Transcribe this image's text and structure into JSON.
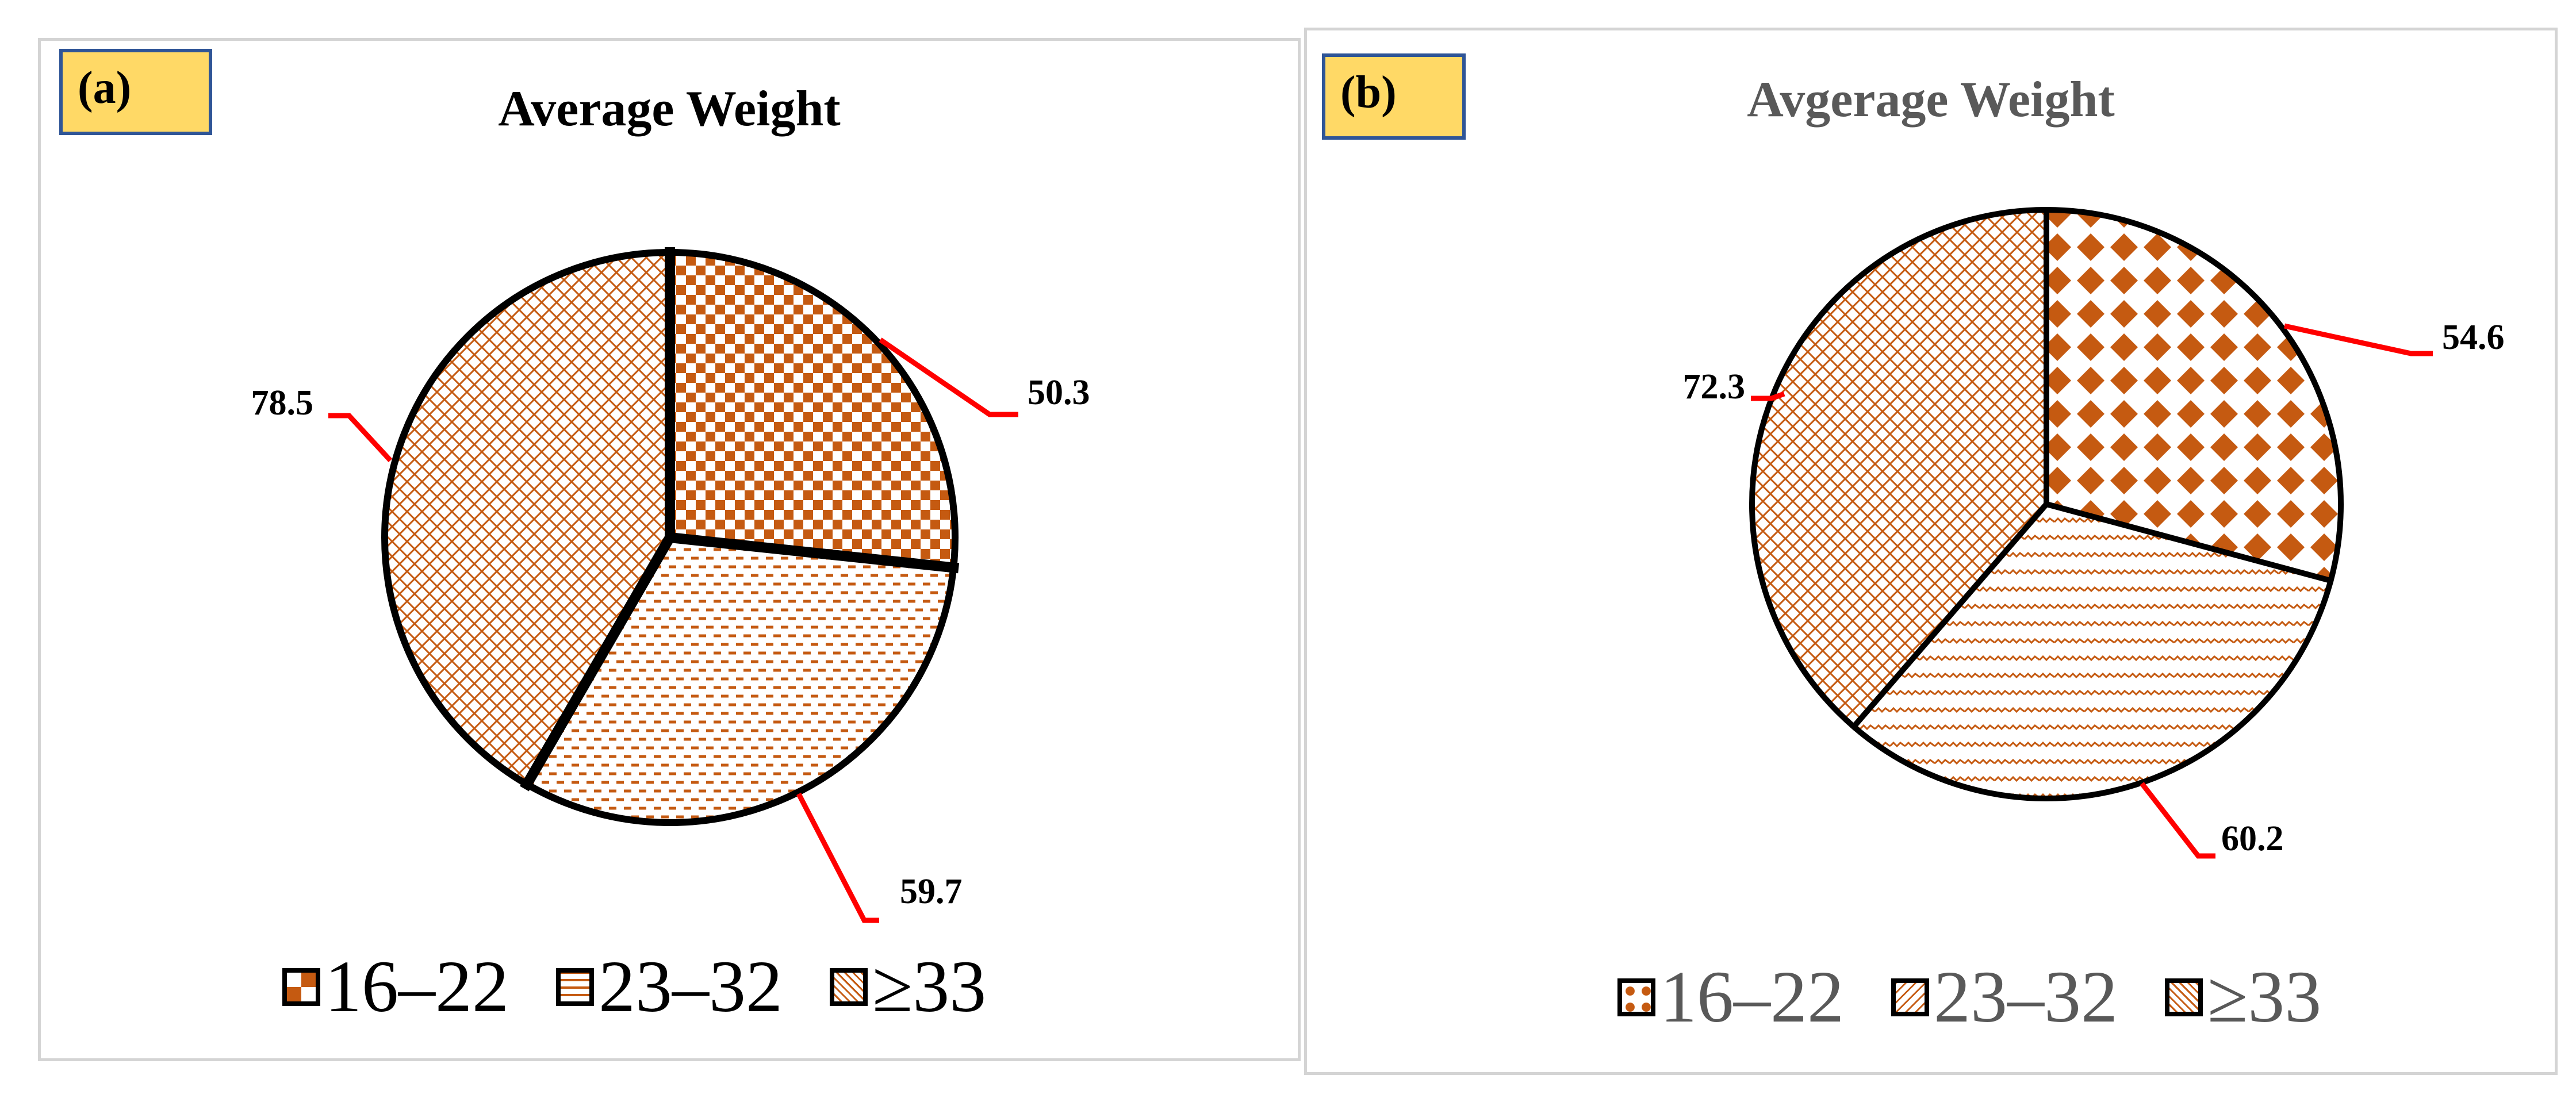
{
  "colors": {
    "pattern": "#c55a11",
    "leader": "#ff0000",
    "outline": "#000000",
    "badge_fill": "#ffd966",
    "badge_border": "#2f5597"
  },
  "chart_data": [
    {
      "type": "pie",
      "panel_label": "(a)",
      "title": "Average Weight",
      "categories": [
        "16–22",
        "23–32",
        "≥33"
      ],
      "values": [
        50.3,
        59.7,
        78.5
      ],
      "data_labels": [
        "50.3",
        "59.7",
        "78.5"
      ],
      "legend": [
        "16–22",
        "23–32",
        "≥33"
      ],
      "legend_position": "bottom",
      "start_angle": "12 o'clock",
      "direction": "clockwise"
    },
    {
      "type": "pie",
      "panel_label": "(b)",
      "title": "Avgerage Weight",
      "categories": [
        "16–22",
        "23–32",
        "≥33"
      ],
      "values": [
        54.6,
        60.2,
        72.3
      ],
      "data_labels": [
        "54.6",
        "60.2",
        "72.3"
      ],
      "legend": [
        "16–22",
        "23–32",
        "≥33"
      ],
      "legend_position": "bottom",
      "start_angle": "12 o'clock",
      "direction": "clockwise"
    }
  ]
}
